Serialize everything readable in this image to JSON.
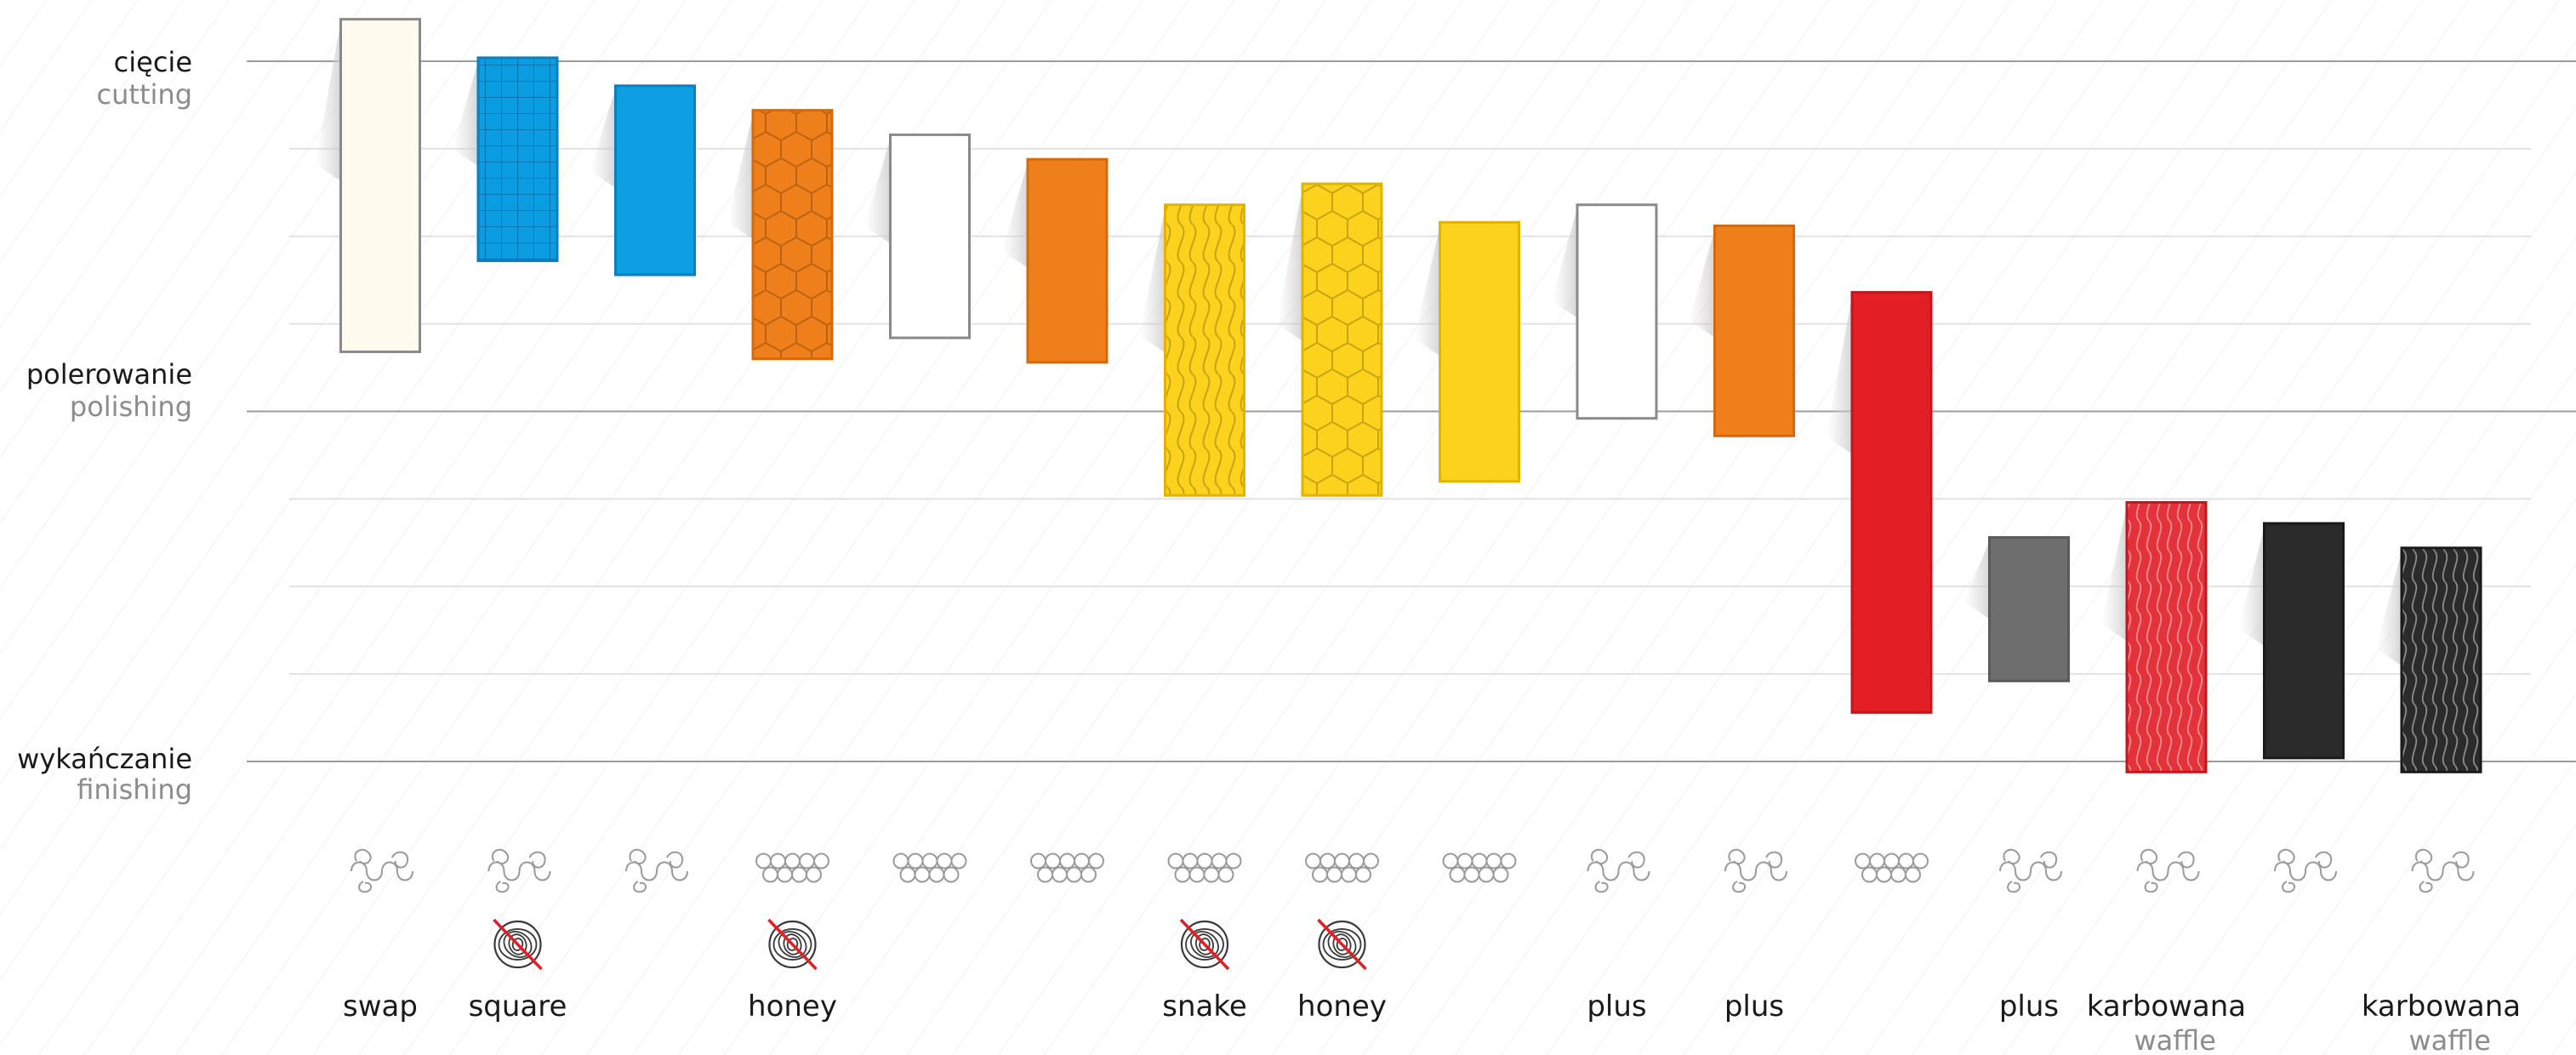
{
  "chart_data": {
    "type": "bar",
    "title": "",
    "xlabel": "",
    "ylabel": "",
    "levels": [
      {
        "key": "cutting",
        "label_pl": "cięcie",
        "label_en": "cutting",
        "value": 3
      },
      {
        "key": "polishing",
        "label_pl": "polerowanie",
        "label_en": "polishing",
        "value": 2
      },
      {
        "key": "finishing",
        "label_pl": "wykańczanie",
        "label_en": "finishing",
        "value": 1
      }
    ],
    "ylim": [
      0.97,
      3.12
    ],
    "grid": true,
    "bars": [
      {
        "color": "#fffcef",
        "stroke": "#8a8a8a",
        "pattern": "none",
        "from": 2.17,
        "to": 3.12,
        "fiber": "twisted",
        "no_swirl": false,
        "type_label": "swap",
        "type_sub": ""
      },
      {
        "color": "#0b9de1",
        "stroke": "#0a7fc0",
        "pattern": "grid",
        "from": 2.43,
        "to": 3.01,
        "fiber": "twisted",
        "no_swirl": true,
        "type_label": "square",
        "type_sub": ""
      },
      {
        "color": "#0d9fe2",
        "stroke": "#0a7fc0",
        "pattern": "none",
        "from": 2.39,
        "to": 2.93,
        "fiber": "twisted",
        "no_swirl": false,
        "type_label": "",
        "type_sub": ""
      },
      {
        "color": "#ef7f1a",
        "stroke": "#d46a0c",
        "pattern": "hex",
        "from": 2.15,
        "to": 2.86,
        "fiber": "circular",
        "no_swirl": true,
        "type_label": "honey",
        "type_sub": ""
      },
      {
        "color": "#ffffff",
        "stroke": "#8a8a8a",
        "pattern": "none",
        "from": 2.21,
        "to": 2.79,
        "fiber": "circular",
        "no_swirl": false,
        "type_label": "",
        "type_sub": ""
      },
      {
        "color": "#ef7f1a",
        "stroke": "#d46a0c",
        "pattern": "none",
        "from": 2.14,
        "to": 2.72,
        "fiber": "circular",
        "no_swirl": false,
        "type_label": "",
        "type_sub": ""
      },
      {
        "color": "#fdd21c",
        "stroke": "#e0b400",
        "pattern": "wave",
        "from": 1.76,
        "to": 2.59,
        "fiber": "circular",
        "no_swirl": true,
        "type_label": "snake",
        "type_sub": ""
      },
      {
        "color": "#fdd21c",
        "stroke": "#e0b400",
        "pattern": "hex",
        "from": 1.76,
        "to": 2.65,
        "fiber": "circular",
        "no_swirl": true,
        "type_label": "honey",
        "type_sub": ""
      },
      {
        "color": "#fdd21c",
        "stroke": "#e0b400",
        "pattern": "none",
        "from": 1.8,
        "to": 2.54,
        "fiber": "circular",
        "no_swirl": false,
        "type_label": "",
        "type_sub": ""
      },
      {
        "color": "#ffffff",
        "stroke": "#8a8a8a",
        "pattern": "none",
        "from": 1.98,
        "to": 2.59,
        "fiber": "twisted",
        "no_swirl": false,
        "type_label": "plus",
        "type_sub": ""
      },
      {
        "color": "#ef7f1a",
        "stroke": "#d46a0c",
        "pattern": "none",
        "from": 1.93,
        "to": 2.53,
        "fiber": "twisted",
        "no_swirl": false,
        "type_label": "plus",
        "type_sub": ""
      },
      {
        "color": "#e31e24",
        "stroke": "#c4161c",
        "pattern": "none",
        "from": 1.14,
        "to": 2.34,
        "fiber": "circular",
        "no_swirl": false,
        "type_label": "",
        "type_sub": ""
      },
      {
        "color": "#6e6e6e",
        "stroke": "#5a5a5a",
        "pattern": "none",
        "from": 1.23,
        "to": 1.64,
        "fiber": "twisted",
        "no_swirl": false,
        "type_label": "plus",
        "type_sub": ""
      },
      {
        "color": "#e3323a",
        "stroke": "#c4161c",
        "pattern": "waffle",
        "from": 0.97,
        "to": 1.74,
        "fiber": "twisted",
        "no_swirl": false,
        "type_label": "karbowana",
        "type_sub": "waffle"
      },
      {
        "color": "#2b2b2b",
        "stroke": "#1a1a1a",
        "pattern": "none",
        "from": 1.01,
        "to": 1.68,
        "fiber": "twisted",
        "no_swirl": false,
        "type_label": "",
        "type_sub": ""
      },
      {
        "color": "#2b2b2b",
        "stroke": "#1a1a1a",
        "pattern": "waffle",
        "from": 0.97,
        "to": 1.61,
        "fiber": "twisted",
        "no_swirl": false,
        "type_label": "karbowana",
        "type_sub": "waffle"
      }
    ]
  }
}
